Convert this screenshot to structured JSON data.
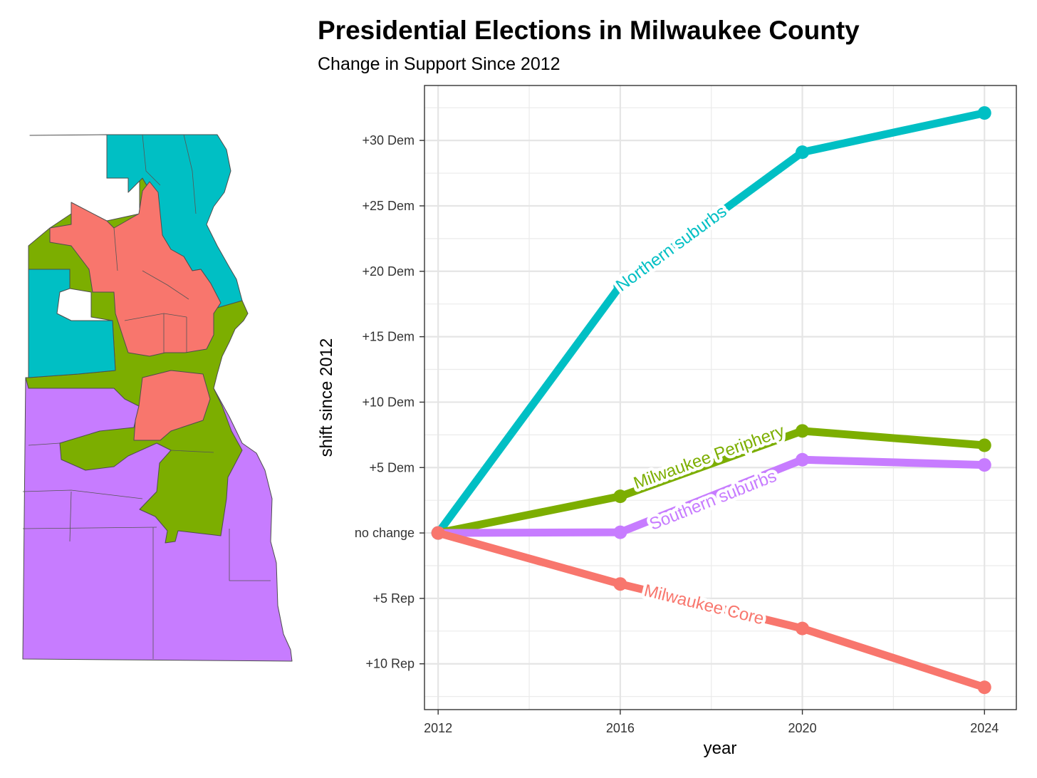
{
  "header": {
    "title": "Presidential Elections in Milwaukee County",
    "subtitle": "Change in Support Since 2012"
  },
  "chart_data": {
    "type": "line",
    "title": "Presidential Elections in Milwaukee County",
    "subtitle": "Change in Support Since 2012",
    "xlabel": "year",
    "ylabel": "shift since 2012",
    "x": [
      2012,
      2016,
      2020,
      2024
    ],
    "xlim": [
      2011.7,
      2024.7
    ],
    "ylim": [
      -13.5,
      34.2
    ],
    "x_ticks": [
      {
        "value": 2012,
        "label": "2012"
      },
      {
        "value": 2016,
        "label": "2016"
      },
      {
        "value": 2020,
        "label": "2020"
      },
      {
        "value": 2024,
        "label": "2024"
      }
    ],
    "y_ticks": [
      {
        "value": -10,
        "label": "+10 Rep"
      },
      {
        "value": -5,
        "label": "+5 Rep"
      },
      {
        "value": 0,
        "label": "no change"
      },
      {
        "value": 5,
        "label": "+5 Dem"
      },
      {
        "value": 10,
        "label": "+10 Dem"
      },
      {
        "value": 15,
        "label": "+15 Dem"
      },
      {
        "value": 20,
        "label": "+20 Dem"
      },
      {
        "value": 25,
        "label": "+25 Dem"
      },
      {
        "value": 30,
        "label": "+30 Dem"
      }
    ],
    "grid": true,
    "legend": "none (direct labels on lines)",
    "series": [
      {
        "name": "Northern suburbs",
        "color": "#00BFC4",
        "values": [
          0,
          18.9,
          29.1,
          32.1
        ]
      },
      {
        "name": "Milwaukee Periphery",
        "color": "#7CAE00",
        "values": [
          0,
          2.8,
          7.8,
          6.7
        ]
      },
      {
        "name": "Southern suburbs",
        "color": "#C77CFF",
        "values": [
          0,
          0.05,
          5.6,
          5.2
        ]
      },
      {
        "name": "Milwaukee Core",
        "color": "#F8766D",
        "values": [
          0,
          -3.9,
          -7.3,
          -11.8
        ]
      }
    ]
  },
  "map": {
    "legend_colors": {
      "Northern suburbs": "#00BFC4",
      "Milwaukee Periphery": "#7CAE00",
      "Southern suburbs": "#C77CFF",
      "Milwaukee Core": "#F8766D"
    }
  }
}
